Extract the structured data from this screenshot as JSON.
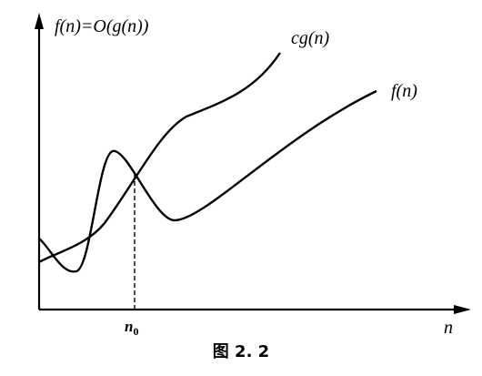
{
  "figure": {
    "title": "f(n)=O(g(n))",
    "x_axis_label": "n",
    "threshold_label": "n0",
    "curve_labels": {
      "cg": "cg(n)",
      "f": "f(n)"
    },
    "caption": "图 2. 2"
  },
  "colors": {
    "stroke": "#000000",
    "background": "#ffffff"
  }
}
